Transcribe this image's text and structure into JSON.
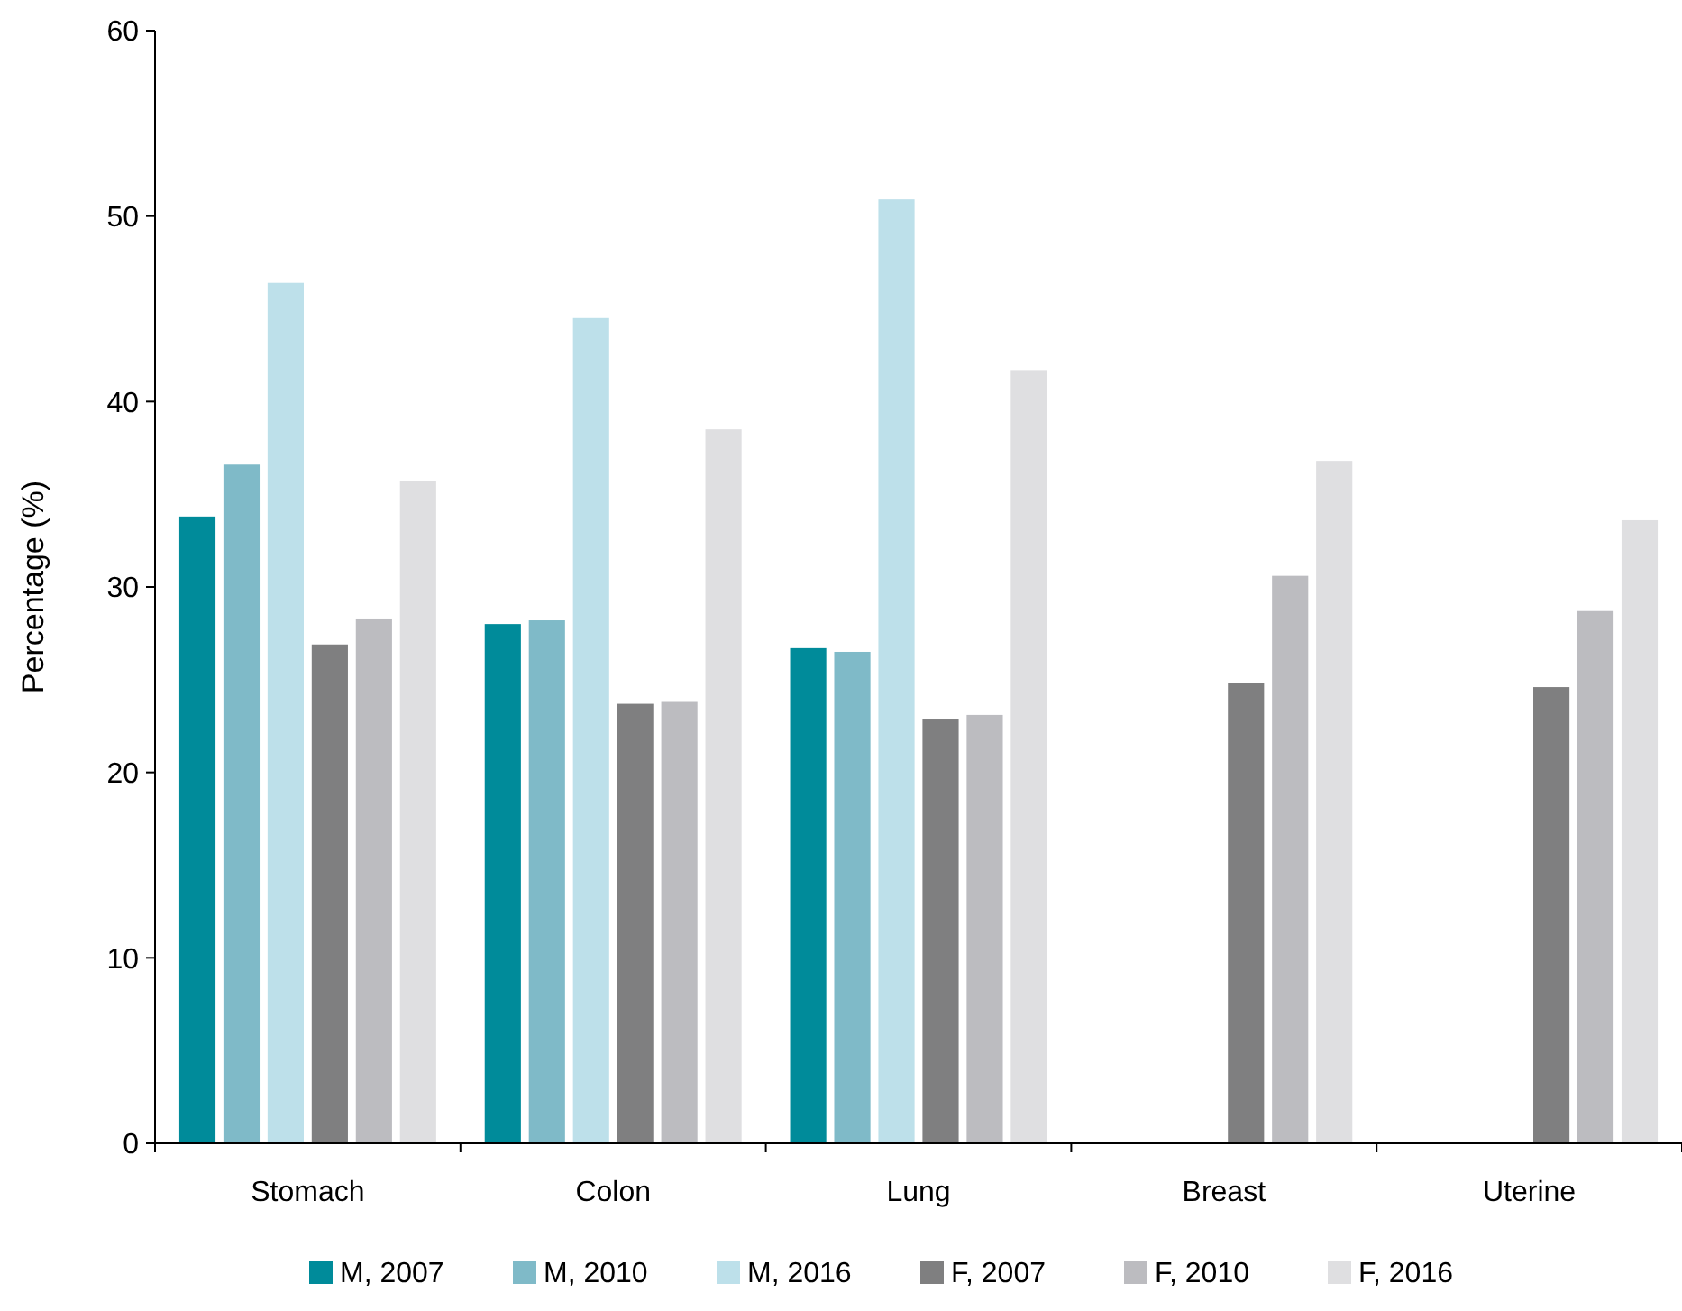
{
  "chart_data": {
    "type": "bar",
    "ylabel": "Percentage (%)",
    "categories": [
      "Stomach",
      "Colon",
      "Lung",
      "Breast",
      "Uterine"
    ],
    "ylim": [
      0,
      60
    ],
    "yticks": [
      0,
      10,
      20,
      30,
      40,
      50,
      60
    ],
    "grid": false,
    "legend": "bottom",
    "series": [
      {
        "name": "M, 2007",
        "color": "#008b9a",
        "values": [
          33.8,
          28.0,
          26.7,
          null,
          null
        ]
      },
      {
        "name": "M, 2010",
        "color": "#7fbac8",
        "values": [
          36.6,
          28.2,
          26.5,
          null,
          null
        ]
      },
      {
        "name": "M, 2016",
        "color": "#bde0ea",
        "values": [
          46.4,
          44.5,
          50.9,
          null,
          null
        ]
      },
      {
        "name": "F, 2007",
        "color": "#7f7f80",
        "values": [
          26.9,
          23.7,
          22.9,
          24.8,
          24.6
        ]
      },
      {
        "name": "F, 2010",
        "color": "#bcbcc0",
        "values": [
          28.3,
          23.8,
          23.1,
          30.6,
          28.7
        ]
      },
      {
        "name": "F, 2016",
        "color": "#dfdfe1",
        "values": [
          35.7,
          38.5,
          41.7,
          36.8,
          33.6
        ]
      }
    ]
  }
}
